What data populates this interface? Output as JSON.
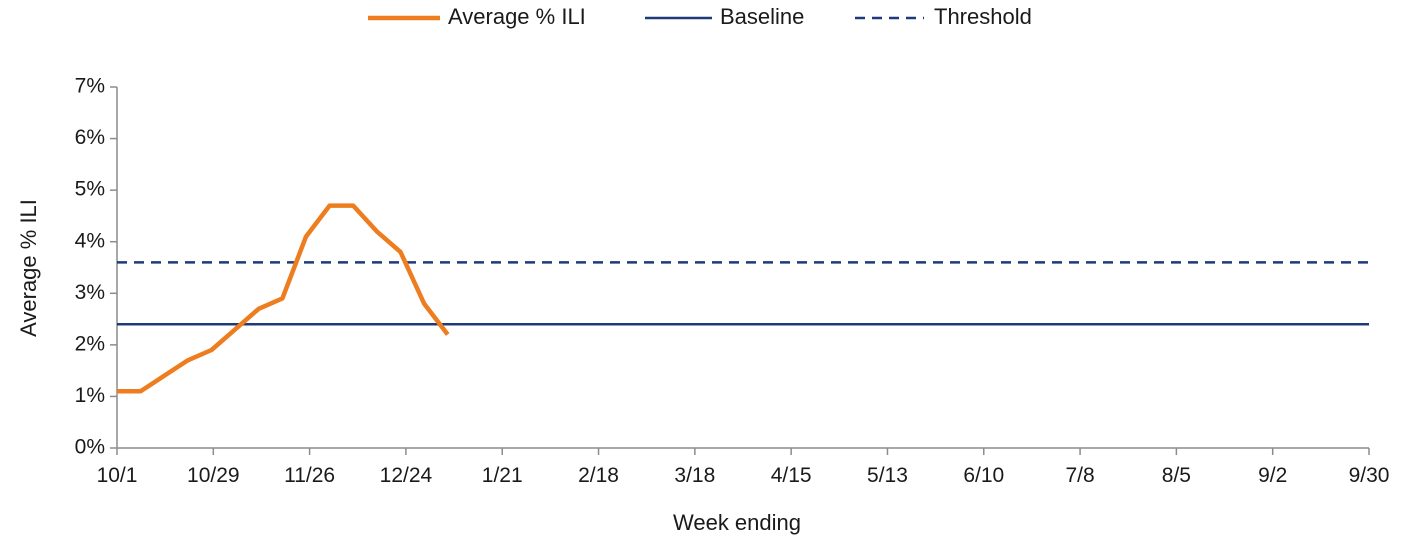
{
  "chart_data": {
    "type": "line",
    "title": "",
    "xlabel": "Week ending",
    "ylabel": "Average % ILI",
    "x_tick_labels": [
      "10/1",
      "10/29",
      "11/26",
      "12/24",
      "1/21",
      "2/18",
      "3/18",
      "4/15",
      "5/13",
      "6/10",
      "7/8",
      "8/5",
      "9/2",
      "9/30"
    ],
    "y_tick_labels": [
      "0%",
      "1%",
      "2%",
      "3%",
      "4%",
      "5%",
      "6%",
      "7%"
    ],
    "ylim": [
      0,
      7
    ],
    "week_count": 53,
    "legend_position": "top-center",
    "grid": false,
    "series": [
      {
        "name": "Average % ILI",
        "style": "solid",
        "color": "#ED7D1F",
        "x_week_index": [
          0,
          1,
          2,
          3,
          4,
          5,
          6,
          7,
          8,
          9,
          10,
          11,
          12,
          13,
          14
        ],
        "values": [
          1.1,
          1.1,
          1.4,
          1.7,
          1.9,
          2.3,
          2.7,
          2.9,
          4.1,
          4.7,
          4.7,
          4.2,
          3.8,
          2.8,
          2.2
        ]
      },
      {
        "name": "Baseline",
        "style": "solid",
        "color": "#1F3A7A",
        "values": [
          2.4
        ]
      },
      {
        "name": "Threshold",
        "style": "dashed",
        "color": "#1F3A7A",
        "values": [
          3.6
        ]
      }
    ]
  }
}
